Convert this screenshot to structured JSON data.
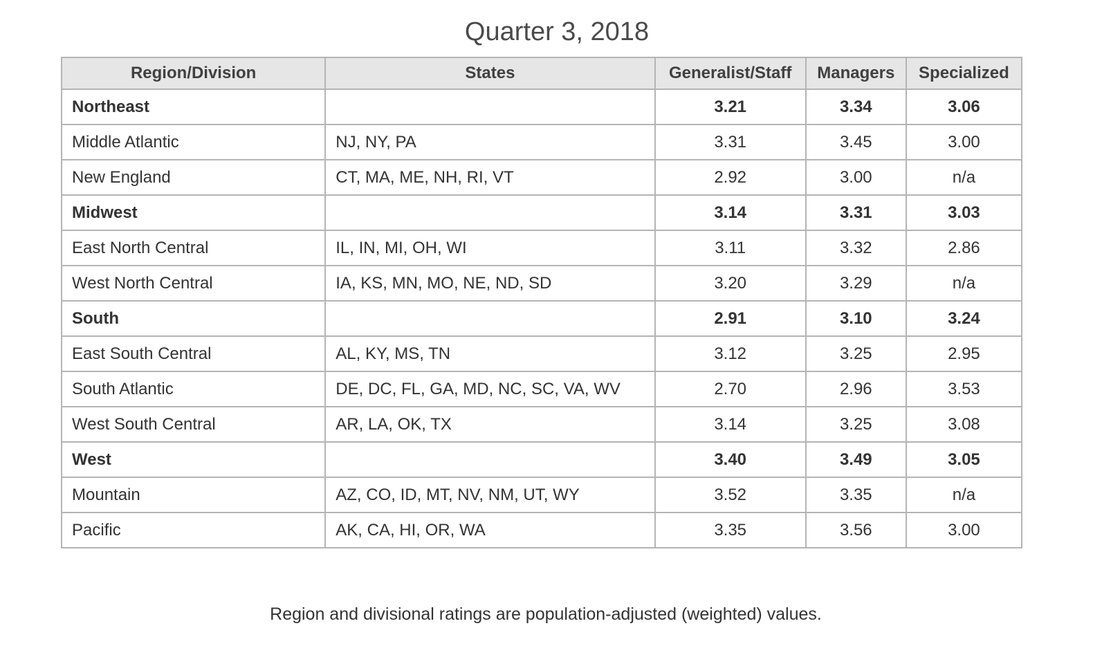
{
  "title": "Quarter 3, 2018",
  "table": {
    "headers": [
      "Region/Division",
      "States",
      "Generalist/Staff",
      "Managers",
      "Specialized"
    ],
    "rows": [
      {
        "name": "Northeast",
        "states": "",
        "generalist": "3.21",
        "managers": "3.34",
        "specialized": "3.06"
      },
      {
        "name": "Middle Atlantic",
        "states": "NJ, NY, PA",
        "generalist": "3.31",
        "managers": "3.45",
        "specialized": "3.00"
      },
      {
        "name": "New England",
        "states": "CT, MA, ME, NH, RI, VT",
        "generalist": "2.92",
        "managers": "3.00",
        "specialized": "n/a"
      },
      {
        "name": "Midwest",
        "states": "",
        "generalist": "3.14",
        "managers": "3.31",
        "specialized": "3.03"
      },
      {
        "name": "East North Central",
        "states": "IL, IN, MI, OH, WI",
        "generalist": "3.11",
        "managers": "3.32",
        "specialized": "2.86"
      },
      {
        "name": "West North Central",
        "states": "IA, KS, MN, MO, NE, ND, SD",
        "generalist": "3.20",
        "managers": "3.29",
        "specialized": "n/a"
      },
      {
        "name": "South",
        "states": "",
        "generalist": "2.91",
        "managers": "3.10",
        "specialized": "3.24"
      },
      {
        "name": "East South Central",
        "states": "AL, KY, MS, TN",
        "generalist": "3.12",
        "managers": "3.25",
        "specialized": "2.95"
      },
      {
        "name": "South Atlantic",
        "states": "DE, DC, FL, GA, MD, NC, SC, VA, WV",
        "generalist": "2.70",
        "managers": "2.96",
        "specialized": "3.53"
      },
      {
        "name": "West South Central",
        "states": "AR, LA, OK, TX",
        "generalist": "3.14",
        "managers": "3.25",
        "specialized": "3.08"
      },
      {
        "name": "West",
        "states": "",
        "generalist": "3.40",
        "managers": "3.49",
        "specialized": "3.05"
      },
      {
        "name": "Mountain",
        "states": "AZ, CO, ID, MT, NV, NM, UT, WY",
        "generalist": "3.52",
        "managers": "3.35",
        "specialized": "n/a"
      },
      {
        "name": "Pacific",
        "states": "AK, CA, HI, OR, WA",
        "generalist": "3.35",
        "managers": "3.56",
        "specialized": "3.00"
      }
    ]
  },
  "footnote": "Region and divisional ratings are population-adjusted (weighted) values."
}
